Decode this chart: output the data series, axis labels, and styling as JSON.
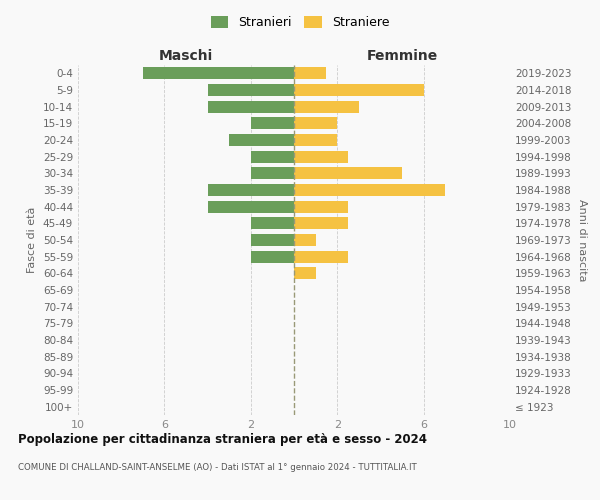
{
  "age_groups": [
    "100+",
    "95-99",
    "90-94",
    "85-89",
    "80-84",
    "75-79",
    "70-74",
    "65-69",
    "60-64",
    "55-59",
    "50-54",
    "45-49",
    "40-44",
    "35-39",
    "30-34",
    "25-29",
    "20-24",
    "15-19",
    "10-14",
    "5-9",
    "0-4"
  ],
  "birth_years": [
    "≤ 1923",
    "1924-1928",
    "1929-1933",
    "1934-1938",
    "1939-1943",
    "1944-1948",
    "1949-1953",
    "1954-1958",
    "1959-1963",
    "1964-1968",
    "1969-1973",
    "1974-1978",
    "1979-1983",
    "1984-1988",
    "1989-1993",
    "1994-1998",
    "1999-2003",
    "2004-2008",
    "2009-2013",
    "2014-2018",
    "2019-2023"
  ],
  "males": [
    0,
    0,
    0,
    0,
    0,
    0,
    0,
    0,
    0,
    2,
    2,
    2,
    4,
    4,
    2,
    2,
    3,
    2,
    4,
    4,
    7
  ],
  "females": [
    0,
    0,
    0,
    0,
    0,
    0,
    0,
    0,
    1,
    2.5,
    1,
    2.5,
    2.5,
    7,
    5,
    2.5,
    2,
    2,
    3,
    6,
    1.5
  ],
  "male_color": "#6a9e5a",
  "female_color": "#f5c242",
  "title": "Popolazione per cittadinanza straniera per età e sesso - 2024",
  "subtitle": "COMUNE DI CHALLAND-SAINT-ANSELME (AO) - Dati ISTAT al 1° gennaio 2024 - TUTTITALIA.IT",
  "legend_male": "Stranieri",
  "legend_female": "Straniere",
  "xlabel_left": "Maschi",
  "xlabel_right": "Femmine",
  "ylabel_left": "Fasce di età",
  "ylabel_right": "Anni di nascita",
  "xlim": 10,
  "bg_color": "#f9f9f9",
  "grid_color": "#cccccc",
  "axis_label_color": "#666666",
  "tick_color": "#888888"
}
